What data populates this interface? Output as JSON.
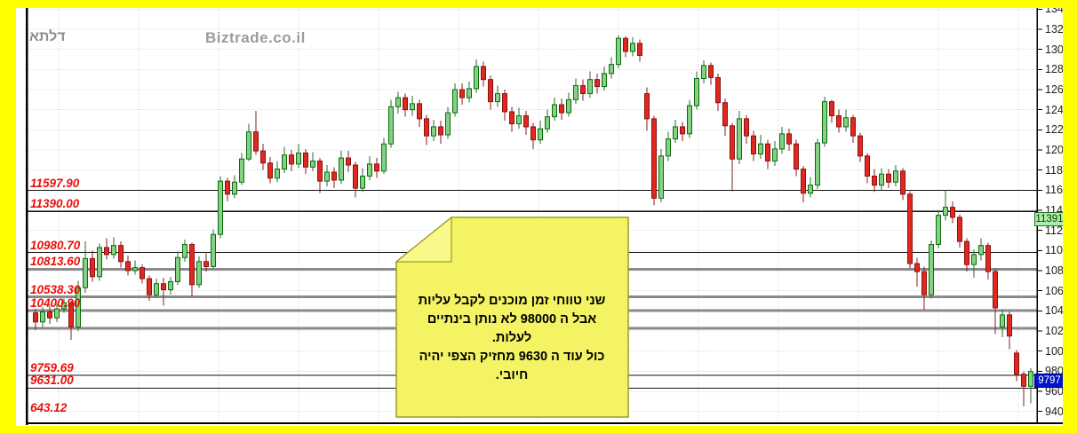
{
  "header": {
    "symbol": "דלתא",
    "watermark": "Biztrade.co.il"
  },
  "note": {
    "lines": [
      "שני טווחי זמן  מוכנים לקבל עליות",
      "אבל ה 98000 לא   נותן בינתיים",
      "לעלות.",
      "כול עוד ה 9630  מחזיק  הצפי יהיה",
      "חיובי."
    ]
  },
  "colors": {
    "frame": "#ffff00",
    "background": "#ffffff",
    "grid": "#cfcfcf",
    "level_thin": "#111111",
    "level_thick": "#8a8a8a",
    "level_label": "#e8100c",
    "candle_up_fill": "#84d084",
    "candle_up_border": "#0b6b0b",
    "candle_up_wick": "#2a6b2a",
    "candle_down_fill": "#e02820",
    "candle_down_border": "#8c1010",
    "candle_down_wick": "#7c2020",
    "note_bg": "#f3f364",
    "note_flap": "#f9f98a",
    "note_border": "#9c9c28",
    "marker_watch_bg": "#aaeeaa",
    "marker_last_bg": "#0012cc"
  },
  "chart_data": {
    "type": "candlestick",
    "title": "דלתא — daily candlestick chart",
    "legend_position": "none",
    "grid": "dotted",
    "y_axis": {
      "min": 9400,
      "max": 13400,
      "ticks": [
        13400,
        13200,
        13000,
        12800,
        12600,
        12400,
        12200,
        12000,
        11800,
        11600,
        11400,
        11200,
        11000,
        10800,
        10600,
        10400,
        10200,
        10000,
        9800,
        9600,
        9400
      ]
    },
    "levels": [
      {
        "label": "11597.90",
        "price": 11597.9,
        "style": "thin"
      },
      {
        "label": "11390.00",
        "price": 11390.0,
        "style": "thin"
      },
      {
        "label": "10980.70",
        "price": 10980.7,
        "style": "thin"
      },
      {
        "label": "10813.60",
        "price": 10813.6,
        "style": "thick"
      },
      {
        "label": "10538.30",
        "price": 10538.3,
        "style": "thick"
      },
      {
        "label": "10400.90",
        "price": 10400.9,
        "style": "thick"
      },
      {
        "label": "",
        "price": 10226.0,
        "style": "thick"
      },
      {
        "label": "9759.69",
        "price": 9759.69,
        "style": "thin"
      },
      {
        "label": "9631.00",
        "price": 9631.0,
        "style": "thin"
      },
      {
        "label": "643.12",
        "price": 643.12,
        "style": "thin"
      }
    ],
    "markers": {
      "watch_level_label": "11391",
      "watch_level": 11391,
      "last_price_label": "9797",
      "last_price": 9797
    },
    "candles_ohlc_order": [
      "open",
      "high",
      "low",
      "close"
    ],
    "candles": [
      [
        10380,
        10420,
        10210,
        10290
      ],
      [
        10290,
        10440,
        10240,
        10390
      ],
      [
        10390,
        10450,
        10270,
        10330
      ],
      [
        10330,
        10470,
        10290,
        10420
      ],
      [
        10420,
        10520,
        10380,
        10480
      ],
      [
        10480,
        10500,
        10110,
        10240
      ],
      [
        10240,
        10700,
        10200,
        10630
      ],
      [
        10630,
        11090,
        10580,
        10920
      ],
      [
        10920,
        11000,
        10690,
        10740
      ],
      [
        10740,
        11070,
        10700,
        11030
      ],
      [
        11030,
        11120,
        10910,
        10960
      ],
      [
        10960,
        11130,
        10920,
        11050
      ],
      [
        11050,
        11090,
        10830,
        10890
      ],
      [
        10890,
        10950,
        10750,
        10800
      ],
      [
        10800,
        10900,
        10760,
        10830
      ],
      [
        10830,
        10860,
        10670,
        10720
      ],
      [
        10720,
        10750,
        10500,
        10560
      ],
      [
        10560,
        10720,
        10530,
        10670
      ],
      [
        10670,
        10730,
        10450,
        10610
      ],
      [
        10610,
        10740,
        10560,
        10690
      ],
      [
        10690,
        10990,
        10660,
        10930
      ],
      [
        10930,
        11110,
        10890,
        11060
      ],
      [
        11060,
        11080,
        10540,
        10660
      ],
      [
        10660,
        10940,
        10630,
        10890
      ],
      [
        10890,
        10970,
        10790,
        10840
      ],
      [
        10840,
        11210,
        10820,
        11160
      ],
      [
        11160,
        11740,
        11120,
        11690
      ],
      [
        11690,
        11720,
        11490,
        11560
      ],
      [
        11560,
        11750,
        11520,
        11680
      ],
      [
        11680,
        11970,
        11650,
        11910
      ],
      [
        11910,
        12260,
        11890,
        12180
      ],
      [
        12180,
        12390,
        11950,
        11990
      ],
      [
        11990,
        12060,
        11800,
        11870
      ],
      [
        11870,
        11930,
        11670,
        11720
      ],
      [
        11720,
        11890,
        11680,
        11810
      ],
      [
        11810,
        12030,
        11770,
        11950
      ],
      [
        11950,
        12000,
        11790,
        11860
      ],
      [
        11860,
        12060,
        11820,
        11970
      ],
      [
        11970,
        12010,
        11760,
        11830
      ],
      [
        11830,
        11980,
        11790,
        11890
      ],
      [
        11890,
        11920,
        11570,
        11690
      ],
      [
        11690,
        11850,
        11640,
        11780
      ],
      [
        11780,
        11830,
        11620,
        11700
      ],
      [
        11700,
        11990,
        11660,
        11920
      ],
      [
        11920,
        11990,
        11780,
        11850
      ],
      [
        11850,
        11880,
        11530,
        11620
      ],
      [
        11620,
        11820,
        11580,
        11740
      ],
      [
        11740,
        11940,
        11700,
        11860
      ],
      [
        11860,
        11920,
        11720,
        11790
      ],
      [
        11790,
        12120,
        11760,
        12060
      ],
      [
        12060,
        12500,
        12020,
        12430
      ],
      [
        12430,
        12580,
        12360,
        12520
      ],
      [
        12520,
        12560,
        12330,
        12400
      ],
      [
        12400,
        12540,
        12340,
        12460
      ],
      [
        12460,
        12500,
        12230,
        12310
      ],
      [
        12310,
        12350,
        12050,
        12140
      ],
      [
        12140,
        12300,
        12090,
        12230
      ],
      [
        12230,
        12290,
        12060,
        12150
      ],
      [
        12150,
        12430,
        12110,
        12370
      ],
      [
        12370,
        12660,
        12330,
        12600
      ],
      [
        12600,
        12660,
        12450,
        12520
      ],
      [
        12520,
        12680,
        12470,
        12610
      ],
      [
        12610,
        12900,
        12570,
        12830
      ],
      [
        12830,
        12880,
        12630,
        12700
      ],
      [
        12700,
        12740,
        12400,
        12480
      ],
      [
        12480,
        12640,
        12430,
        12560
      ],
      [
        12560,
        12600,
        12290,
        12380
      ],
      [
        12380,
        12430,
        12180,
        12260
      ],
      [
        12260,
        12420,
        12210,
        12340
      ],
      [
        12340,
        12390,
        12150,
        12230
      ],
      [
        12230,
        12270,
        12010,
        12100
      ],
      [
        12100,
        12290,
        12060,
        12210
      ],
      [
        12210,
        12400,
        12170,
        12330
      ],
      [
        12330,
        12520,
        12290,
        12450
      ],
      [
        12450,
        12510,
        12300,
        12370
      ],
      [
        12370,
        12570,
        12330,
        12500
      ],
      [
        12500,
        12710,
        12460,
        12640
      ],
      [
        12640,
        12700,
        12490,
        12560
      ],
      [
        12560,
        12780,
        12520,
        12700
      ],
      [
        12700,
        12760,
        12560,
        12630
      ],
      [
        12630,
        12830,
        12590,
        12760
      ],
      [
        12760,
        12920,
        12710,
        12850
      ],
      [
        12850,
        13140,
        12810,
        13110
      ],
      [
        13110,
        13130,
        12920,
        12980
      ],
      [
        12980,
        13120,
        12930,
        13060
      ],
      [
        13060,
        13100,
        12880,
        12940
      ],
      [
        12560,
        12620,
        12190,
        12310
      ],
      [
        12310,
        12340,
        11450,
        11520
      ],
      [
        11520,
        12010,
        11480,
        11940
      ],
      [
        11940,
        12180,
        11890,
        12110
      ],
      [
        12110,
        12300,
        12070,
        12230
      ],
      [
        12230,
        12280,
        12090,
        12160
      ],
      [
        12160,
        12500,
        12120,
        12440
      ],
      [
        12440,
        12780,
        12400,
        12710
      ],
      [
        12710,
        12890,
        12660,
        12840
      ],
      [
        12840,
        12870,
        12650,
        12720
      ],
      [
        12720,
        12760,
        12390,
        12470
      ],
      [
        12470,
        12510,
        12140,
        12240
      ],
      [
        12240,
        12270,
        11590,
        11910
      ],
      [
        11910,
        12390,
        11860,
        12310
      ],
      [
        12310,
        12350,
        12060,
        12140
      ],
      [
        12140,
        12190,
        11890,
        11960
      ],
      [
        11960,
        12150,
        11910,
        12060
      ],
      [
        12060,
        12100,
        11810,
        11890
      ],
      [
        11890,
        12090,
        11840,
        12010
      ],
      [
        12010,
        12230,
        11960,
        12160
      ],
      [
        12160,
        12210,
        11990,
        12060
      ],
      [
        12060,
        12100,
        11740,
        11810
      ],
      [
        11810,
        11840,
        11480,
        11570
      ],
      [
        11570,
        11730,
        11530,
        11650
      ],
      [
        11650,
        12110,
        11610,
        12070
      ],
      [
        12070,
        12530,
        12030,
        12480
      ],
      [
        12480,
        12500,
        12270,
        12340
      ],
      [
        12340,
        12400,
        12170,
        12230
      ],
      [
        12230,
        12400,
        12180,
        12320
      ],
      [
        12320,
        12350,
        12070,
        12140
      ],
      [
        12140,
        12170,
        11880,
        11940
      ],
      [
        11940,
        11970,
        11670,
        11740
      ],
      [
        11740,
        11810,
        11580,
        11650
      ],
      [
        11650,
        11820,
        11600,
        11760
      ],
      [
        11760,
        11810,
        11620,
        11680
      ],
      [
        11680,
        11850,
        11640,
        11790
      ],
      [
        11790,
        11820,
        11500,
        11560
      ],
      [
        11560,
        11590,
        10820,
        10870
      ],
      [
        10870,
        10930,
        10640,
        10790
      ],
      [
        10790,
        10840,
        10410,
        10560
      ],
      [
        10560,
        11100,
        10520,
        11060
      ],
      [
        11060,
        11400,
        11020,
        11350
      ],
      [
        11350,
        11600,
        11300,
        11430
      ],
      [
        11430,
        11490,
        11270,
        11330
      ],
      [
        11330,
        11360,
        11030,
        11090
      ],
      [
        11090,
        11120,
        10790,
        10860
      ],
      [
        10860,
        11010,
        10730,
        10960
      ],
      [
        10960,
        11120,
        10900,
        11050
      ],
      [
        11050,
        11080,
        10710,
        10790
      ],
      [
        10790,
        10820,
        10170,
        10430
      ],
      [
        10240,
        10410,
        10140,
        10360
      ],
      [
        10360,
        10390,
        10020,
        10150
      ],
      [
        9980,
        10010,
        9700,
        9770
      ],
      [
        9770,
        9800,
        9450,
        9650
      ],
      [
        9650,
        9830,
        9480,
        9797
      ]
    ]
  }
}
